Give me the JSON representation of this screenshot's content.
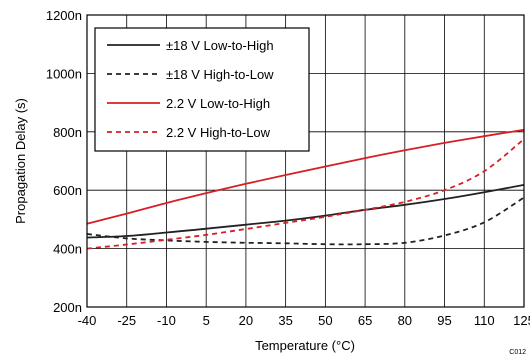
{
  "chart_data": {
    "type": "line",
    "xlabel": "Temperature (°C)",
    "ylabel": "Propagation Delay (s)",
    "xlim": [
      -40,
      125
    ],
    "ylim": [
      200,
      1200
    ],
    "x_ticks": [
      "-40",
      "-25",
      "-10",
      "5",
      "20",
      "35",
      "50",
      "65",
      "80",
      "95",
      "110",
      "125"
    ],
    "y_ticks": [
      "200n",
      "400n",
      "600n",
      "800n",
      "1000n",
      "1200n"
    ],
    "grid": true,
    "legend_position": "top-left",
    "corner_note": "C012",
    "series": [
      {
        "name": "±18 V Low-to-High",
        "color": "#222222",
        "style": "solid",
        "x": [
          -40,
          -25,
          -10,
          5,
          20,
          35,
          50,
          65,
          80,
          95,
          110,
          125
        ],
        "y": [
          438,
          443,
          455,
          468,
          482,
          496,
          513,
          533,
          550,
          570,
          593,
          618
        ]
      },
      {
        "name": "±18 V High-to-Low",
        "color": "#222222",
        "style": "dashed",
        "x": [
          -40,
          -25,
          -10,
          5,
          20,
          35,
          50,
          65,
          80,
          95,
          110,
          125
        ],
        "y": [
          450,
          435,
          428,
          423,
          420,
          418,
          415,
          415,
          420,
          445,
          490,
          575
        ]
      },
      {
        "name": "2.2 V Low-to-High",
        "color": "#d61f26",
        "style": "solid",
        "x": [
          -40,
          -25,
          -10,
          5,
          20,
          35,
          50,
          65,
          80,
          95,
          110,
          125
        ],
        "y": [
          485,
          520,
          556,
          590,
          622,
          652,
          681,
          710,
          737,
          762,
          785,
          807
        ]
      },
      {
        "name": "2.2 V High-to-Low",
        "color": "#d61f26",
        "style": "dashed",
        "x": [
          -40,
          -25,
          -10,
          5,
          20,
          35,
          50,
          65,
          80,
          95,
          110,
          125
        ],
        "y": [
          400,
          414,
          430,
          447,
          467,
          488,
          509,
          533,
          560,
          600,
          665,
          775
        ]
      }
    ]
  }
}
